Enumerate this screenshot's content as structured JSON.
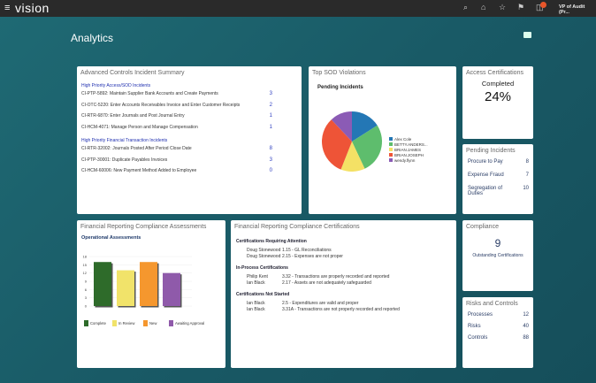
{
  "header": {
    "brand": "vision",
    "user": "VP of Audit (Pr...",
    "icons": [
      "menu-icon",
      "search-icon",
      "home-icon",
      "star-icon",
      "flag-icon",
      "notifications-icon"
    ]
  },
  "page": {
    "title": "Analytics"
  },
  "incident_summary": {
    "title": "Advanced Controls Incident Summary",
    "sections": [
      {
        "heading": "High Priority Access/SOD Incidents",
        "rows": [
          {
            "label": "CI-PTP-5892: Maintain Supplier Bank Accounts and Create Payments",
            "count": "3"
          },
          {
            "label": "CI-OTC-5220: Enter Accounts Receivables Invoice and Enter Customer Receipts",
            "count": "2"
          },
          {
            "label": "CI-RTR-6870: Enter Journals and Post Journal Entry",
            "count": "1"
          },
          {
            "label": "CI-HCM-4071: Manage Person and Manage Compensation",
            "count": "1"
          }
        ]
      },
      {
        "heading": "High Priority Financial Transaction Incidents",
        "rows": [
          {
            "label": "CI-RTR-32002: Journals Posted After Period Close Date",
            "count": "8"
          },
          {
            "label": "CI-PTP-30001: Duplicate Payables Invoices",
            "count": "3"
          },
          {
            "label": "CI-HCM-60006: New Payment Method Added to Employee",
            "count": "0"
          }
        ]
      }
    ]
  },
  "sod": {
    "title": "Top SOD Violations",
    "chart_title": "Pending Incidents"
  },
  "access": {
    "title": "Access Certifications",
    "label": "Completed",
    "value": "24%"
  },
  "pending": {
    "title": "Pending Incidents",
    "rows": [
      {
        "label": "Procure to Pay",
        "value": "8"
      },
      {
        "label": "Expense Fraud",
        "value": "7"
      },
      {
        "label": "Segregation of Duties",
        "value": "10"
      }
    ]
  },
  "assess": {
    "title": "Financial Reporting Compliance Assessments",
    "chart_title": "Operational Assessments"
  },
  "certs": {
    "title": "Financial Reporting Compliance Certifications",
    "groups": [
      {
        "heading": "Certifications Requiring Attention",
        "rows": [
          {
            "name": "Doug Stonewood",
            "item": "1.15 - GL Reconciliations"
          },
          {
            "name": "Doug Stonewood",
            "item": "2.15 - Expenses are not proper"
          }
        ]
      },
      {
        "heading": "In-Process Certifications",
        "rows": [
          {
            "name": "Philip Kent",
            "item": "3.32 - Transactions are properly recorded and reported"
          },
          {
            "name": "Ian Black",
            "item": "2.17 - Assets are not adequately safeguarded"
          }
        ]
      },
      {
        "heading": "Certifications Not Started",
        "rows": [
          {
            "name": "Ian Black",
            "item": "2.5 - Expenditures are valid and proper"
          },
          {
            "name": "Ian Black",
            "item": "3.31A - Transactions are not properly recorded and reported"
          }
        ]
      }
    ]
  },
  "compliance": {
    "title": "Compliance",
    "value": "9",
    "label": "Outstanding Certifications"
  },
  "risks": {
    "title": "Risks and Controls",
    "rows": [
      {
        "label": "Processes",
        "value": "12"
      },
      {
        "label": "Risks",
        "value": "40"
      },
      {
        "label": "Controls",
        "value": "88"
      }
    ]
  },
  "chart_data": [
    {
      "type": "pie",
      "title": "Pending Incidents",
      "legend": "right",
      "categories": [
        "Alex Cole",
        "BETTY.ANDERS...",
        "BRIAN.JAMES",
        "BRIAN.JOSEPH",
        "wendy.flynn"
      ],
      "values": [
        16,
        27,
        13,
        32,
        12
      ],
      "colors": [
        "#2477b5",
        "#5ebd6d",
        "#f4e165",
        "#ee5437",
        "#8b5bb5"
      ]
    },
    {
      "type": "bar",
      "title": "Operational Assessments",
      "legend": "bottom",
      "categories": [
        "Complete",
        "In Review",
        "New",
        "Awaiting Approval"
      ],
      "values": [
        16,
        13,
        16,
        12
      ],
      "colors": [
        "#2e6b2a",
        "#f1e36a",
        "#f5972e",
        "#8f5aaa"
      ],
      "ylim": [
        0,
        18
      ],
      "yticks": [
        0,
        3,
        6,
        9,
        12,
        15,
        18
      ],
      "grid": true
    }
  ]
}
